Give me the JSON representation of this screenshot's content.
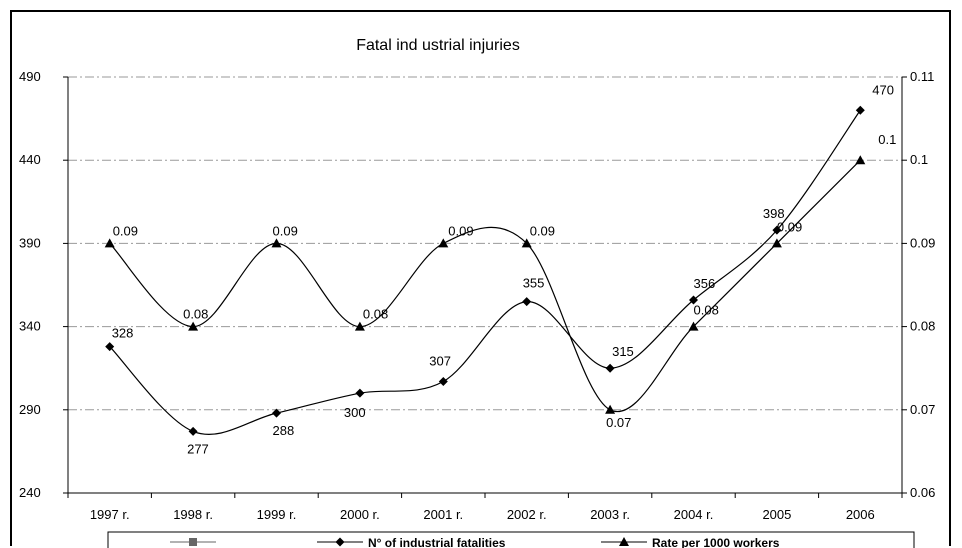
{
  "chart_data": {
    "type": "line",
    "title": "Fatal ind ustrial injuries",
    "categories": [
      "1997 r.",
      "1998 r.",
      "1999 r.",
      "2000 r.",
      "2001 r.",
      "2002 r.",
      "2003 r.",
      "2004 r.",
      "2005",
      "2006"
    ],
    "series": [
      {
        "name": "N° of industrial fatalities",
        "axis": "left",
        "marker": "diamond",
        "values": [
          328,
          277,
          288,
          300,
          307,
          355,
          315,
          356,
          398,
          470
        ],
        "labels": [
          "328",
          "277",
          "288",
          "300",
          "307",
          "355",
          "315",
          "356",
          "398",
          "470"
        ]
      },
      {
        "name": "Rate per 1000 workers",
        "axis": "right",
        "marker": "triangle",
        "values": [
          0.09,
          0.08,
          0.09,
          0.08,
          0.09,
          0.09,
          0.07,
          0.08,
          0.09,
          0.1
        ],
        "labels": [
          "0.09",
          "0.08",
          "0.09",
          "0.08",
          "0.09",
          "0.09",
          "0.07",
          "0.08",
          "0.09",
          "0.1"
        ]
      }
    ],
    "y_left": {
      "ylim": [
        240,
        490
      ],
      "ticks": [
        240,
        290,
        340,
        390,
        440,
        490
      ]
    },
    "y_right": {
      "ylim": [
        0.06,
        0.11
      ],
      "ticks": [
        "0.06",
        "0.07",
        "0.08",
        "0.09",
        "0.1",
        "0.11"
      ]
    },
    "grid": true,
    "legend": {
      "position": "bottom",
      "entries": [
        "",
        "N° of industrial fatalities",
        "Rate per 1000 workers"
      ]
    },
    "colors": {
      "line": "#000000",
      "grid": "#9a9a9a",
      "legend_square": "#666666"
    }
  }
}
